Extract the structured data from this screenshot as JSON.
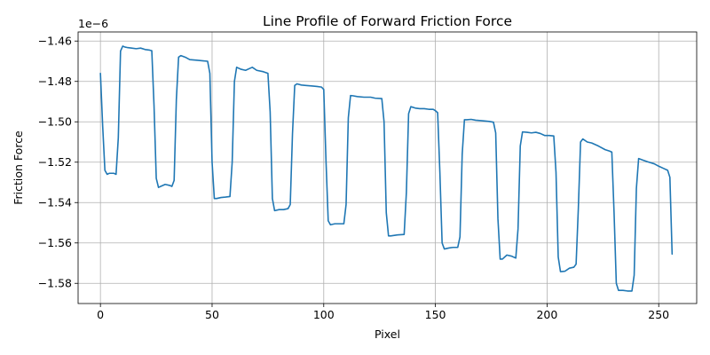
{
  "chart_data": {
    "type": "line",
    "title": "Line Profile of Forward Friction Force",
    "xlabel": "Pixel",
    "ylabel": "Friction Force",
    "offset_text": "1e−6",
    "grid": true,
    "xlim": [
      -10,
      267
    ],
    "ylim": [
      -1.59,
      -1.4555
    ],
    "x_ticks": [
      0,
      50,
      100,
      150,
      200,
      250
    ],
    "x_tick_labels": [
      "0",
      "50",
      "100",
      "150",
      "200",
      "250"
    ],
    "y_ticks": [
      -1.58,
      -1.56,
      -1.54,
      -1.52,
      -1.5,
      -1.48,
      -1.46
    ],
    "y_tick_labels": [
      "−1.58",
      "−1.56",
      "−1.54",
      "−1.52",
      "−1.50",
      "−1.48",
      "−1.46"
    ],
    "series": [
      {
        "color": "#1f77b4",
        "points": [
          [
            0,
            -1.476
          ],
          [
            1,
            -1.502
          ],
          [
            2,
            -1.524
          ],
          [
            3,
            -1.526
          ],
          [
            4,
            -1.5255
          ],
          [
            5,
            -1.5255
          ],
          [
            6,
            -1.5255
          ],
          [
            7,
            -1.526
          ],
          [
            8,
            -1.508
          ],
          [
            9,
            -1.465
          ],
          [
            10,
            -1.4625
          ],
          [
            11,
            -1.463
          ],
          [
            12,
            -1.4632
          ],
          [
            14,
            -1.4635
          ],
          [
            16,
            -1.4638
          ],
          [
            18,
            -1.4635
          ],
          [
            20,
            -1.4642
          ],
          [
            22,
            -1.4645
          ],
          [
            23,
            -1.4648
          ],
          [
            24,
            -1.492
          ],
          [
            25,
            -1.528
          ],
          [
            26,
            -1.5325
          ],
          [
            27,
            -1.532
          ],
          [
            29,
            -1.531
          ],
          [
            31,
            -1.5315
          ],
          [
            32,
            -1.532
          ],
          [
            33,
            -1.529
          ],
          [
            34,
            -1.489
          ],
          [
            35,
            -1.468
          ],
          [
            36,
            -1.4672
          ],
          [
            38,
            -1.468
          ],
          [
            40,
            -1.4692
          ],
          [
            43,
            -1.4695
          ],
          [
            46,
            -1.4698
          ],
          [
            48,
            -1.47
          ],
          [
            49,
            -1.476
          ],
          [
            50,
            -1.52
          ],
          [
            51,
            -1.538
          ],
          [
            52,
            -1.538
          ],
          [
            54,
            -1.5375
          ],
          [
            56,
            -1.5373
          ],
          [
            58,
            -1.537
          ],
          [
            59,
            -1.52
          ],
          [
            60,
            -1.48
          ],
          [
            61,
            -1.473
          ],
          [
            63,
            -1.474
          ],
          [
            65,
            -1.4745
          ],
          [
            67,
            -1.4735
          ],
          [
            68,
            -1.473
          ],
          [
            70,
            -1.4745
          ],
          [
            73,
            -1.4752
          ],
          [
            75,
            -1.476
          ],
          [
            76,
            -1.495
          ],
          [
            77,
            -1.538
          ],
          [
            78,
            -1.544
          ],
          [
            80,
            -1.5435
          ],
          [
            82,
            -1.5435
          ],
          [
            84,
            -1.543
          ],
          [
            85,
            -1.541
          ],
          [
            86,
            -1.506
          ],
          [
            87,
            -1.482
          ],
          [
            88,
            -1.4812
          ],
          [
            90,
            -1.4818
          ],
          [
            92,
            -1.482
          ],
          [
            95,
            -1.4823
          ],
          [
            97,
            -1.4825
          ],
          [
            99,
            -1.4828
          ],
          [
            100,
            -1.484
          ],
          [
            101,
            -1.519
          ],
          [
            102,
            -1.549
          ],
          [
            103,
            -1.551
          ],
          [
            105,
            -1.5505
          ],
          [
            107,
            -1.5505
          ],
          [
            109,
            -1.5505
          ],
          [
            110,
            -1.541
          ],
          [
            111,
            -1.498
          ],
          [
            112,
            -1.487
          ],
          [
            113,
            -1.4871
          ],
          [
            115,
            -1.4875
          ],
          [
            118,
            -1.4878
          ],
          [
            121,
            -1.4878
          ],
          [
            123,
            -1.4883
          ],
          [
            126,
            -1.4885
          ],
          [
            127,
            -1.5
          ],
          [
            128,
            -1.545
          ],
          [
            129,
            -1.5565
          ],
          [
            130,
            -1.5565
          ],
          [
            133,
            -1.556
          ],
          [
            136,
            -1.5558
          ],
          [
            137,
            -1.535
          ],
          [
            138,
            -1.496
          ],
          [
            139,
            -1.4925
          ],
          [
            141,
            -1.4932
          ],
          [
            143,
            -1.4935
          ],
          [
            145,
            -1.4935
          ],
          [
            147,
            -1.4938
          ],
          [
            149,
            -1.4938
          ],
          [
            150,
            -1.4945
          ],
          [
            151,
            -1.4955
          ],
          [
            152,
            -1.525
          ],
          [
            153,
            -1.56
          ],
          [
            154,
            -1.563
          ],
          [
            156,
            -1.5625
          ],
          [
            158,
            -1.5622
          ],
          [
            160,
            -1.5622
          ],
          [
            161,
            -1.557
          ],
          [
            162,
            -1.516
          ],
          [
            163,
            -1.499
          ],
          [
            164,
            -1.499
          ],
          [
            166,
            -1.4988
          ],
          [
            168,
            -1.4992
          ],
          [
            171,
            -1.4995
          ],
          [
            174,
            -1.4998
          ],
          [
            176,
            -1.5002
          ],
          [
            177,
            -1.5055
          ],
          [
            178,
            -1.548
          ],
          [
            179,
            -1.568
          ],
          [
            180,
            -1.568
          ],
          [
            182,
            -1.566
          ],
          [
            184,
            -1.5665
          ],
          [
            186,
            -1.5675
          ],
          [
            187,
            -1.553
          ],
          [
            188,
            -1.512
          ],
          [
            189,
            -1.505
          ],
          [
            191,
            -1.5052
          ],
          [
            193,
            -1.5055
          ],
          [
            195,
            -1.5052
          ],
          [
            197,
            -1.5058
          ],
          [
            199,
            -1.5068
          ],
          [
            201,
            -1.5068
          ],
          [
            203,
            -1.507
          ],
          [
            204,
            -1.525
          ],
          [
            205,
            -1.567
          ],
          [
            206,
            -1.5742
          ],
          [
            208,
            -1.574
          ],
          [
            210,
            -1.5725
          ],
          [
            212,
            -1.572
          ],
          [
            213,
            -1.5705
          ],
          [
            214,
            -1.543
          ],
          [
            215,
            -1.51
          ],
          [
            216,
            -1.5085
          ],
          [
            218,
            -1.51
          ],
          [
            220,
            -1.5105
          ],
          [
            223,
            -1.512
          ],
          [
            226,
            -1.5138
          ],
          [
            228,
            -1.5145
          ],
          [
            229,
            -1.515
          ],
          [
            230,
            -1.545
          ],
          [
            231,
            -1.58
          ],
          [
            232,
            -1.5835
          ],
          [
            234,
            -1.5835
          ],
          [
            236,
            -1.5838
          ],
          [
            238,
            -1.5838
          ],
          [
            239,
            -1.576
          ],
          [
            240,
            -1.533
          ],
          [
            241,
            -1.5182
          ],
          [
            243,
            -1.519
          ],
          [
            245,
            -1.5198
          ],
          [
            248,
            -1.5208
          ],
          [
            250,
            -1.522
          ],
          [
            252,
            -1.523
          ],
          [
            254,
            -1.524
          ],
          [
            255,
            -1.5275
          ],
          [
            256,
            -1.5655
          ]
        ]
      }
    ]
  }
}
